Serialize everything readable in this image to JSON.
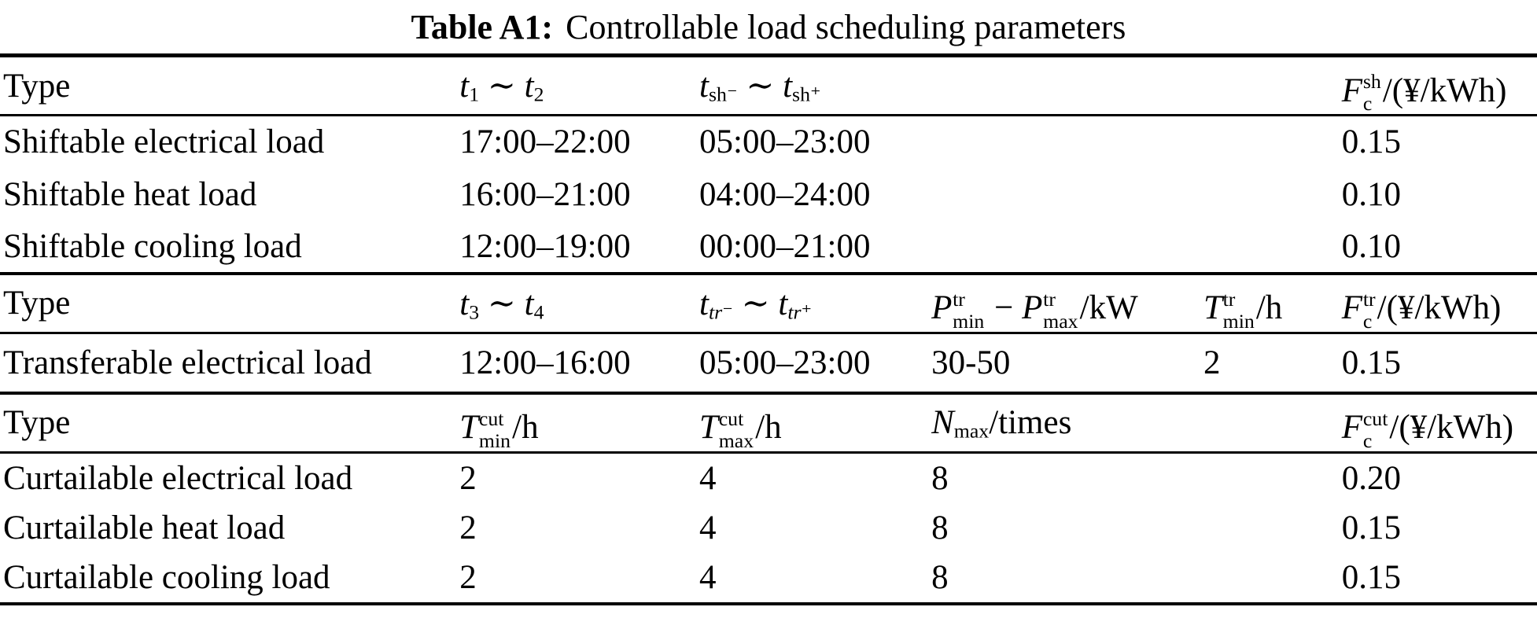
{
  "title": {
    "prefix": "Table A1:",
    "text": "Controllable load scheduling parameters"
  },
  "table": {
    "sections": [
      {
        "header": {
          "c1": "Type",
          "c2": "*t*_{1} ∼ *t*_{2}",
          "c3": "*t*_{sh⁻} ∼ *t*_{sh⁺}",
          "c4": "",
          "c5": "",
          "c6": "*F*^{sh}_{c}/(¥/kWh)"
        },
        "rows": [
          {
            "c1": "Shiftable electrical load",
            "c2": "17:00–22:00",
            "c3": "05:00–23:00",
            "c4": "",
            "c5": "",
            "c6": "0.15"
          },
          {
            "c1": "Shiftable heat load",
            "c2": "16:00–21:00",
            "c3": "04:00–24:00",
            "c4": "",
            "c5": "",
            "c6": "0.10"
          },
          {
            "c1": "Shiftable cooling load",
            "c2": "12:00–19:00",
            "c3": "00:00–21:00",
            "c4": "",
            "c5": "",
            "c6": "0.10"
          }
        ]
      },
      {
        "header": {
          "c1": "Type",
          "c2": "*t*_{3} ∼ *t*_{4}",
          "c3": "*t*_{*tr*⁻} ∼ *t*_{*tr*⁺}",
          "c4": "*P*^{tr}_{min} − *P*^{tr}_{max}/kW",
          "c5": "*T*^{tr}_{min}/h",
          "c6": "*F*^{tr}_{c}/(¥/kWh)"
        },
        "rows": [
          {
            "c1": "Transferable electrical load",
            "c2": "12:00–16:00",
            "c3": "05:00–23:00",
            "c4": "30-50",
            "c5": "2",
            "c6": "0.15"
          }
        ]
      },
      {
        "header": {
          "c1": "Type",
          "c2": "*T*^{cut}_{min}/h",
          "c3": "*T*^{cut}_{max}/h",
          "c4": "*N*_{max}/times",
          "c5": "",
          "c6": "*F*^{cut}_{c}/(¥/kWh)"
        },
        "rows": [
          {
            "c1": "Curtailable electrical load",
            "c2": "2",
            "c3": "4",
            "c4": "8",
            "c5": "",
            "c6": "0.20"
          },
          {
            "c1": "Curtailable heat load",
            "c2": "2",
            "c3": "4",
            "c4": "8",
            "c5": "",
            "c6": "0.15"
          },
          {
            "c1": "Curtailable cooling load",
            "c2": "2",
            "c3": "4",
            "c4": "8",
            "c5": "",
            "c6": "0.15"
          }
        ]
      }
    ]
  }
}
